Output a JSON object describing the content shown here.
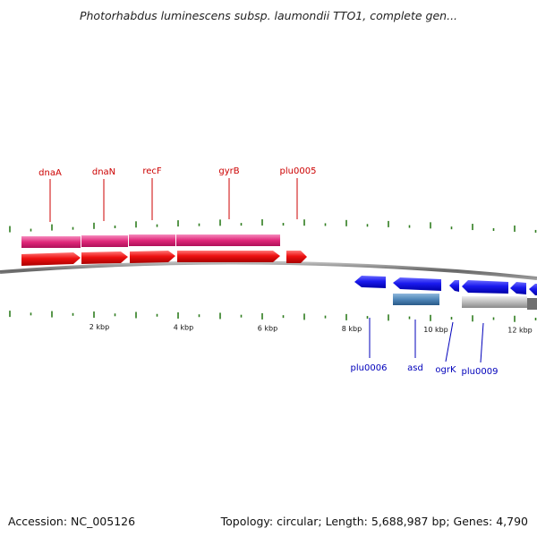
{
  "title": "Photorhabdus luminescens subsp. laumondii TTO1, complete gen...",
  "footer": {
    "accession": "Accession: NC_005126",
    "summary": "Topology: circular; Length: 5,688,987 bp; Genes: 4,790"
  },
  "colors": {
    "forward_gene": "#ee1111",
    "forward_cds": "#e0287a",
    "reverse_gene": "#1a1aee",
    "reverse_cds_steel": "#4f86b8",
    "reverse_cds_gray": "#b8b8b8",
    "tick": "#2f7d1f",
    "backbone": "#777777",
    "forward_label": "#cc0000",
    "reverse_label": "#0000bb"
  },
  "scale": {
    "ticks": [
      {
        "kbp": 2,
        "label": "2 kbp"
      },
      {
        "kbp": 4,
        "label": "4 kbp"
      },
      {
        "kbp": 6,
        "label": "6 kbp"
      },
      {
        "kbp": 8,
        "label": "8 kbp"
      },
      {
        "kbp": 10,
        "label": "10 kbp"
      },
      {
        "kbp": 12,
        "label": "12 kbp"
      }
    ]
  },
  "forward_genes": [
    {
      "label": "dnaA",
      "start_kbp": 0.0,
      "end_kbp": 1.4
    },
    {
      "label": "dnaN",
      "start_kbp": 1.45,
      "end_kbp": 2.55
    },
    {
      "label": "recF",
      "start_kbp": 2.6,
      "end_kbp": 3.7
    },
    {
      "label": "gyrB",
      "start_kbp": 3.75,
      "end_kbp": 6.2
    },
    {
      "label": "plu0005",
      "start_kbp": 6.45,
      "end_kbp": 6.95
    }
  ],
  "reverse_genes": [
    {
      "label": "plu0006",
      "start_kbp": 8.05,
      "end_kbp": 8.8
    },
    {
      "label": "asd",
      "start_kbp": 9.15,
      "end_kbp": 10.25
    },
    {
      "label": "ogrK",
      "start_kbp": 10.55,
      "end_kbp": 10.8
    },
    {
      "label": "plu0009",
      "start_kbp": 10.85,
      "end_kbp": 12.0
    },
    {
      "label": "",
      "start_kbp": 12.05,
      "end_kbp": 12.6
    }
  ]
}
